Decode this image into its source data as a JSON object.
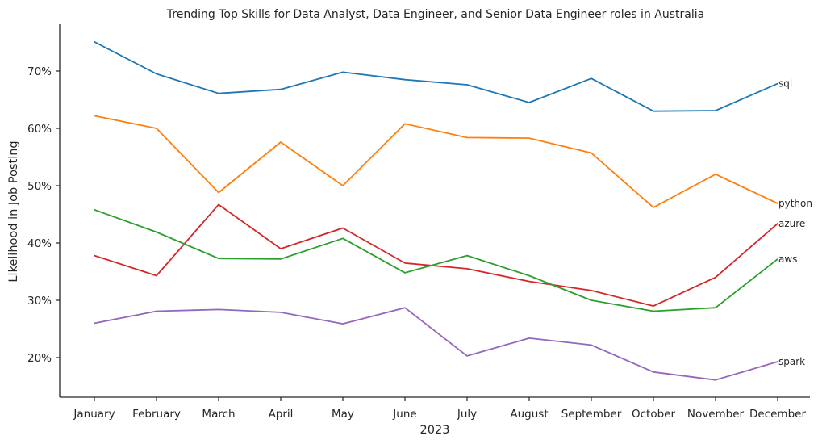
{
  "chart_data": {
    "type": "line",
    "title": "Trending Top Skills for Data Analyst, Data Engineer, and Senior Data Engineer roles in Australia",
    "xlabel": "2023",
    "ylabel": "Likelihood in Job Posting",
    "categories": [
      "January",
      "February",
      "March",
      "April",
      "May",
      "June",
      "July",
      "August",
      "September",
      "October",
      "November",
      "December"
    ],
    "ylim": [
      13,
      78
    ],
    "yticks": [
      20,
      30,
      40,
      50,
      60,
      70
    ],
    "ytick_labels": [
      "20%",
      "30%",
      "40%",
      "50%",
      "60%",
      "70%"
    ],
    "grid": false,
    "legend": "none",
    "series": [
      {
        "name": "sql",
        "color": "#1f77b4",
        "values": [
          75.1,
          69.5,
          66.1,
          66.8,
          69.8,
          68.5,
          67.6,
          64.5,
          68.7,
          63.0,
          63.1,
          67.8
        ]
      },
      {
        "name": "python",
        "color": "#ff7f0e",
        "values": [
          62.2,
          60.0,
          48.8,
          57.6,
          50.0,
          60.8,
          58.4,
          58.3,
          55.7,
          46.2,
          52.0,
          46.9
        ]
      },
      {
        "name": "azure",
        "color": "#d62728",
        "values": [
          37.8,
          34.3,
          46.7,
          39.0,
          42.6,
          36.5,
          35.5,
          33.3,
          31.7,
          29.0,
          34.0,
          43.4
        ]
      },
      {
        "name": "aws",
        "color": "#2ca02c",
        "values": [
          45.8,
          41.9,
          37.3,
          37.2,
          40.8,
          34.8,
          37.8,
          34.3,
          30.0,
          28.1,
          28.7,
          37.2
        ]
      },
      {
        "name": "spark",
        "color": "#9467bd",
        "values": [
          26.0,
          28.1,
          28.4,
          27.9,
          25.9,
          28.7,
          20.3,
          23.4,
          22.2,
          17.5,
          16.1,
          19.3
        ]
      }
    ]
  }
}
